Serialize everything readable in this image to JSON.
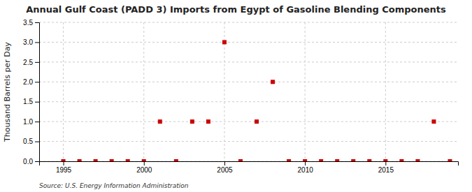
{
  "chart_data": {
    "type": "scatter",
    "title": "Annual Gulf Coast (PADD 3) Imports from Egypt of Gasoline Blending Components",
    "ylabel": "Thousand Barrels per Day",
    "source": "Source: U.S. Energy Information Administration",
    "color": "#cc0000",
    "marker": "square",
    "grid": true,
    "x": [
      1995,
      1996,
      1997,
      1998,
      1999,
      2000,
      2001,
      2002,
      2003,
      2004,
      2005,
      2006,
      2007,
      2008,
      2009,
      2010,
      2011,
      2012,
      2013,
      2014,
      2015,
      2016,
      2017,
      2018,
      2019
    ],
    "values": [
      0,
      0,
      0,
      0,
      0,
      0,
      1.0,
      0,
      1.0,
      1.0,
      3.0,
      0,
      1.0,
      2.0,
      0,
      0,
      0,
      0,
      0,
      0,
      0,
      0,
      0,
      1.0,
      0
    ],
    "xlim": [
      1993.5,
      2019.5
    ],
    "ylim": [
      0,
      3.5
    ],
    "xticks": [
      1995,
      2000,
      2005,
      2010,
      2015
    ],
    "yticks": [
      {
        "value": 0,
        "label": "0.0"
      },
      0.5,
      {
        "value": 1,
        "label": "1.0"
      },
      1.5,
      {
        "value": 2,
        "label": "2.0"
      },
      2.5,
      {
        "value": 3,
        "label": "3.0"
      },
      3.5
    ]
  }
}
